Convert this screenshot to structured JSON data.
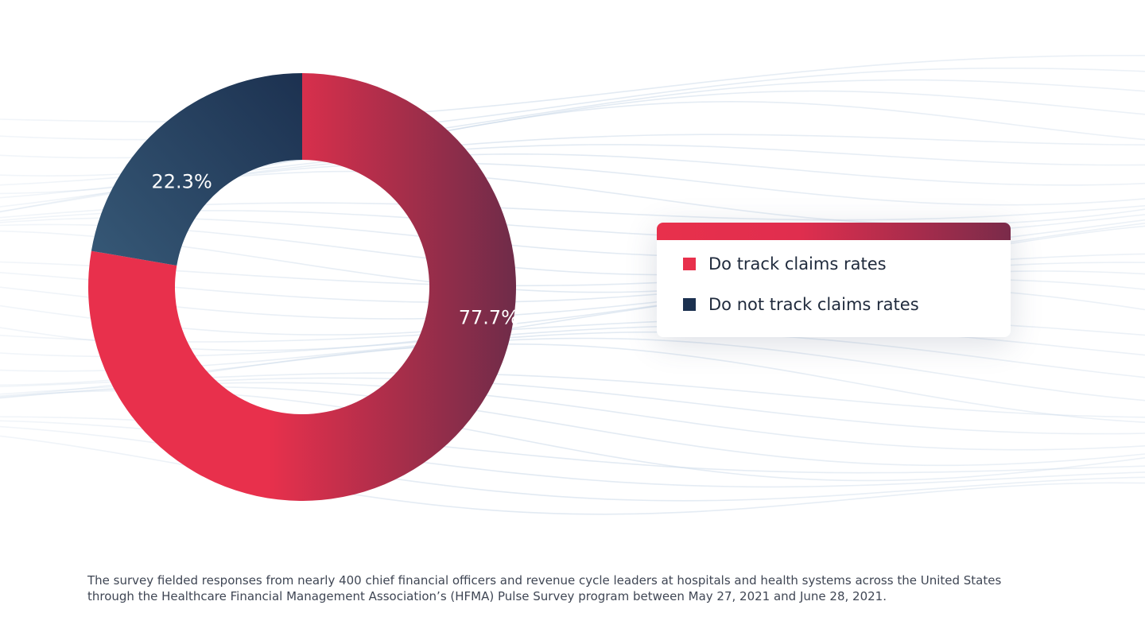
{
  "colors": {
    "track": "#e8304c",
    "track_dark": "#6f2c49",
    "not_track": "#1c3150",
    "not_track_light": "#365876"
  },
  "chart_data": {
    "type": "pie",
    "variant": "donut",
    "title": "",
    "categories": [
      "Do track claims rates",
      "Do not track claims rates"
    ],
    "values": [
      77.7,
      22.3
    ],
    "unit": "%",
    "data_labels": [
      "77.7%",
      "22.3%"
    ],
    "legend_position": "right"
  },
  "legend": {
    "items": [
      {
        "label": "Do track claims rates"
      },
      {
        "label": "Do not track claims rates"
      }
    ]
  },
  "footnote": {
    "line1": "The survey fielded responses from nearly 400 chief financial officers and revenue cycle leaders at hospitals and health systems across the United States",
    "line2": "through the Healthcare Financial Management Association’s (HFMA) Pulse Survey program between May 27, 2021 and June 28, 2021."
  }
}
